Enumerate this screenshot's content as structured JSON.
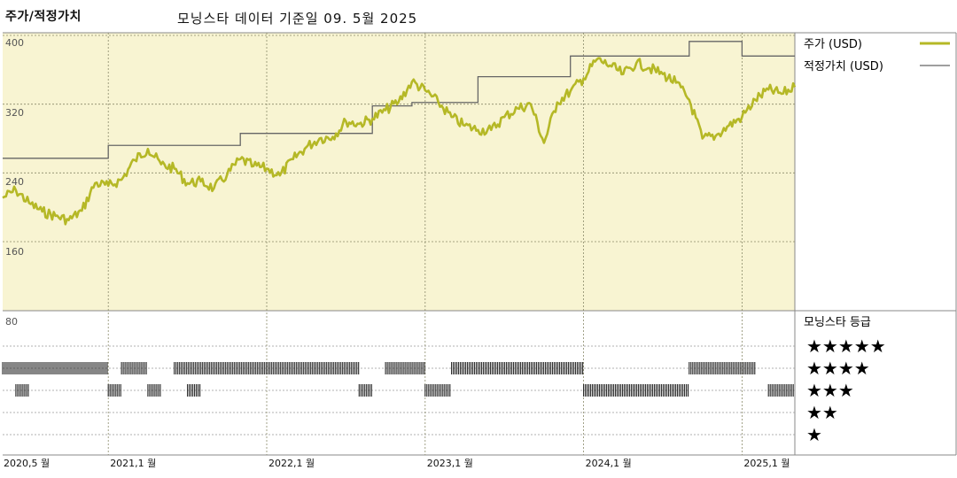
{
  "header": {
    "left_title": "주가/적정가치",
    "center_title": "모닝스타 데이터 기준일 09. 5월 2025"
  },
  "legend": {
    "price_label": "주가 (USD)",
    "fair_value_label": "적정가치 (USD)"
  },
  "rating": {
    "title": "모닝스타 등급",
    "rows": [
      "★★★★★",
      "★★★★",
      "★★★",
      "★★",
      "★"
    ]
  },
  "colors": {
    "price_line": "#b5b826",
    "fair_value_line": "#666666",
    "price_panel_bg": "#f8f4d2",
    "rating_bar": "#222222"
  },
  "chart_data": {
    "type": "line",
    "title": "주가/적정가치",
    "y_ticks": [
      400,
      320,
      240,
      160,
      80
    ],
    "ylim": [
      80,
      400
    ],
    "x_tick_labels": [
      "2020,5 월",
      "2021,1 월",
      "2022,1 월",
      "2023,1 월",
      "2024,1 월",
      "2025,1 월"
    ],
    "x_range": [
      "2020-05",
      "2025-05"
    ],
    "series": [
      {
        "name": "주가 (USD)",
        "points": [
          [
            "2020-05",
            211
          ],
          [
            "2020-06",
            220
          ],
          [
            "2020-07",
            205
          ],
          [
            "2020-08",
            195
          ],
          [
            "2020-09",
            190
          ],
          [
            "2020-10",
            185
          ],
          [
            "2020-11",
            196
          ],
          [
            "2020-12",
            228
          ],
          [
            "2021-01",
            225
          ],
          [
            "2021-02",
            232
          ],
          [
            "2021-03",
            255
          ],
          [
            "2021-04",
            268
          ],
          [
            "2021-05",
            250
          ],
          [
            "2021-06",
            245
          ],
          [
            "2021-07",
            228
          ],
          [
            "2021-08",
            230
          ],
          [
            "2021-09",
            222
          ],
          [
            "2021-10",
            238
          ],
          [
            "2021-11",
            256
          ],
          [
            "2021-12",
            248
          ],
          [
            "2022-01",
            245
          ],
          [
            "2022-02",
            237
          ],
          [
            "2022-03",
            256
          ],
          [
            "2022-04",
            270
          ],
          [
            "2022-05",
            280
          ],
          [
            "2022-06",
            282
          ],
          [
            "2022-07",
            300
          ],
          [
            "2022-08",
            297
          ],
          [
            "2022-09",
            303
          ],
          [
            "2022-10",
            313
          ],
          [
            "2022-11",
            323
          ],
          [
            "2022-12",
            346
          ],
          [
            "2023-01",
            336
          ],
          [
            "2023-02",
            322
          ],
          [
            "2023-03",
            305
          ],
          [
            "2023-04",
            295
          ],
          [
            "2023-05",
            290
          ],
          [
            "2023-06",
            290
          ],
          [
            "2023-07",
            305
          ],
          [
            "2023-08",
            315
          ],
          [
            "2023-09",
            320
          ],
          [
            "2023-10",
            275
          ],
          [
            "2023-11",
            322
          ],
          [
            "2023-12",
            335
          ],
          [
            "2024-01",
            350
          ],
          [
            "2024-02",
            372
          ],
          [
            "2024-03",
            365
          ],
          [
            "2024-04",
            355
          ],
          [
            "2024-05",
            368
          ],
          [
            "2024-06",
            362
          ],
          [
            "2024-07",
            355
          ],
          [
            "2024-08",
            345
          ],
          [
            "2024-09",
            325
          ],
          [
            "2024-10",
            280
          ],
          [
            "2024-11",
            283
          ],
          [
            "2024-12",
            295
          ],
          [
            "2025-01",
            305
          ],
          [
            "2025-02",
            325
          ],
          [
            "2025-03",
            337
          ],
          [
            "2025-04",
            332
          ],
          [
            "2025-05",
            340
          ]
        ]
      },
      {
        "name": "적정가치 (USD)",
        "steps": [
          [
            "2020-05",
            257
          ],
          [
            "2021-01",
            272
          ],
          [
            "2021-11",
            286
          ],
          [
            "2022-09",
            318
          ],
          [
            "2022-12",
            322
          ],
          [
            "2023-05",
            352
          ],
          [
            "2023-12",
            376
          ],
          [
            "2024-09",
            393
          ],
          [
            "2025-01",
            376
          ],
          [
            "2025-05",
            376
          ]
        ]
      }
    ],
    "rating_history": {
      "stars_4": [
        [
          "2020-05",
          "2021-01"
        ],
        [
          "2021-02",
          "2021-04"
        ],
        [
          "2021-06",
          "2022-08"
        ],
        [
          "2022-10",
          "2023-01"
        ],
        [
          "2023-03",
          "2024-01"
        ],
        [
          "2024-09",
          "2025-02"
        ]
      ],
      "stars_3": [
        [
          "2020-06",
          "2020-07"
        ],
        [
          "2021-01",
          "2021-02"
        ],
        [
          "2021-04",
          "2021-05"
        ],
        [
          "2021-07",
          "2021-08"
        ],
        [
          "2022-08",
          "2022-09"
        ],
        [
          "2023-01",
          "2023-03"
        ],
        [
          "2024-01",
          "2024-09"
        ],
        [
          "2025-03",
          "2025-05"
        ]
      ]
    }
  }
}
